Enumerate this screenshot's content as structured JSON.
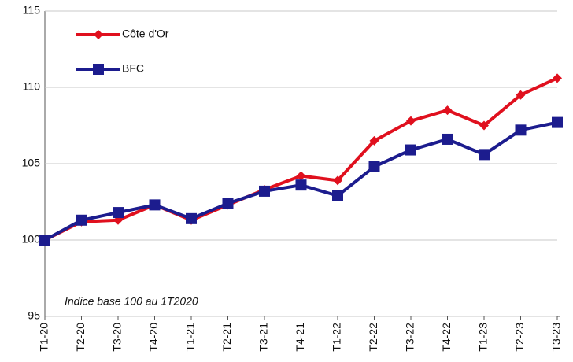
{
  "chart_data": {
    "type": "line",
    "annotation": "Indice base 100 au 1T2020",
    "categories": [
      "T1-20",
      "T2-20",
      "T3-20",
      "T4-20",
      "T1-21",
      "T2-21",
      "T3-21",
      "T4-21",
      "T1-22",
      "T2-22",
      "T3-22",
      "T4-22",
      "T1-23",
      "T2-23",
      "T3-23"
    ],
    "series": [
      {
        "name": "Côte d'Or",
        "color": "#e0101e",
        "marker": "diamond",
        "values": [
          100,
          101.2,
          101.3,
          102.3,
          101.3,
          102.3,
          103.3,
          104.2,
          103.9,
          106.5,
          107.8,
          108.5,
          107.5,
          109.5,
          110.6
        ]
      },
      {
        "name": "BFC",
        "color": "#1c1c8e",
        "marker": "square",
        "values": [
          100,
          101.3,
          101.8,
          102.3,
          101.4,
          102.4,
          103.2,
          103.6,
          102.9,
          104.8,
          105.9,
          106.6,
          105.6,
          107.2,
          107.7
        ]
      }
    ],
    "ylim": [
      95,
      115
    ],
    "yticks": [
      95,
      100,
      105,
      110,
      115
    ],
    "grid": true,
    "legend": "upper left"
  }
}
